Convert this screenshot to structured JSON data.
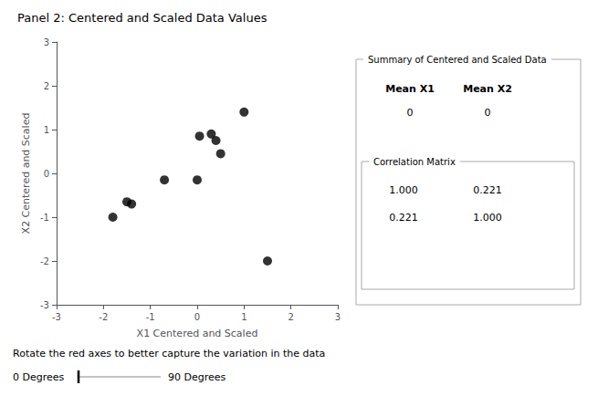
{
  "chart_data": {
    "type": "scatter",
    "title": "Panel 2: Centered and Scaled Data Values",
    "x": [
      -1.8,
      -1.5,
      -1.4,
      -0.7,
      0.05,
      0.0,
      0.3,
      0.4,
      0.5,
      1.0,
      1.5
    ],
    "values": [
      -1.0,
      -0.65,
      -0.7,
      -0.15,
      0.85,
      -0.15,
      0.9,
      0.75,
      0.45,
      1.4,
      -2.0
    ],
    "xlabel": "X1 Centered and Scaled",
    "ylabel": "X2 Centered and Scaled",
    "xlim": [
      -3,
      3
    ],
    "ylim": [
      -3,
      3
    ],
    "xticks": [
      -3,
      -2,
      -1,
      0,
      1,
      2,
      3
    ],
    "yticks": [
      -3,
      -2,
      -1,
      0,
      1,
      2,
      3
    ],
    "color": "black",
    "marker": "circle",
    "grid": false,
    "annotations": [
      "Summary of Centered and Scaled Data",
      "Mean X1",
      "Mean X2",
      "0",
      "0",
      "Correlation Matrix",
      "1.000",
      "0.221",
      "0.221",
      "1.000",
      "Rotate the red axes to better capture the variation in the data",
      "0 Degrees",
      "90 Degrees"
    ]
  }
}
